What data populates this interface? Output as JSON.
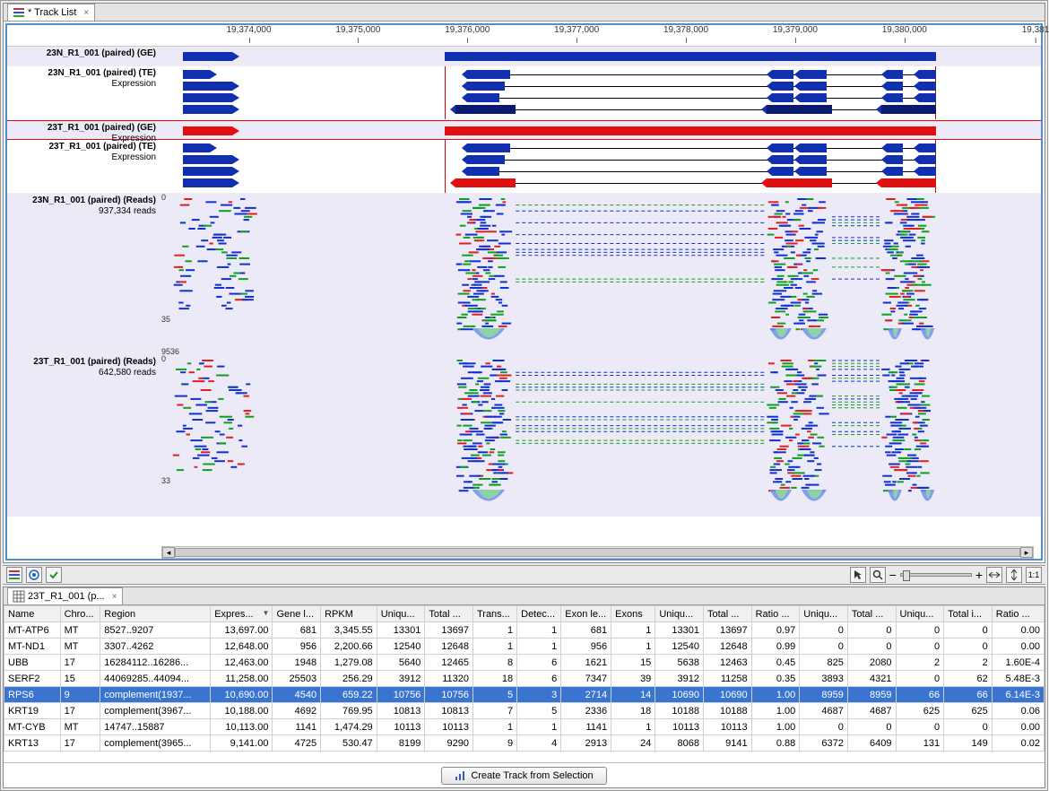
{
  "top_tab": {
    "title": "* Track List"
  },
  "bottom_tab": {
    "title": "23T_R1_001 (p..."
  },
  "ruler": {
    "start": 19373200,
    "end": 19381200,
    "ticks": [
      19374000,
      19375000,
      19376000,
      19377000,
      19378000,
      19379000,
      19380000
    ],
    "right_label": "19,381"
  },
  "selection": {
    "start": 19375800,
    "end": 19380300
  },
  "tracks": [
    {
      "id": "ge_n",
      "type": "ge",
      "label": "23N_R1_001 (paired) (GE)",
      "color": "#1030b0",
      "gene_bar": {
        "start": 19373400,
        "end": 19380300
      }
    },
    {
      "id": "te_n",
      "type": "te",
      "label": "23N_R1_001 (paired) (TE)",
      "sub": "Expression",
      "left_block": {
        "start": 19373400,
        "end": 19373700
      },
      "transcripts": [
        {
          "exons": [
            [
              19376000,
              19376400
            ],
            [
              19378800,
              19379000
            ],
            [
              19379050,
              19379300
            ],
            [
              19379850,
              19380000
            ],
            [
              19380150,
              19380300
            ]
          ]
        },
        {
          "exons": [
            [
              19376000,
              19376350
            ],
            [
              19378800,
              19379000
            ],
            [
              19379050,
              19379300
            ],
            [
              19379850,
              19380000
            ],
            [
              19380150,
              19380300
            ]
          ]
        },
        {
          "exons": [
            [
              19376000,
              19376300
            ],
            [
              19378800,
              19379000
            ],
            [
              19379050,
              19379300
            ],
            [
              19379850,
              19380000
            ],
            [
              19380150,
              19380300
            ]
          ]
        },
        {
          "exons": [
            [
              19375900,
              19376450
            ],
            [
              19378750,
              19379350
            ],
            [
              19379800,
              19380300
            ]
          ],
          "dark": true
        }
      ]
    },
    {
      "id": "ge_t",
      "type": "ge",
      "label": "23T_R1_001 (paired) (GE)",
      "sub": "Expression",
      "color": "#e01010",
      "red_border": true,
      "gene_bar": {
        "start": 19373400,
        "end": 19380300
      }
    },
    {
      "id": "te_t",
      "type": "te",
      "label": "23T_R1_001 (paired) (TE)",
      "sub": "Expression",
      "left_block": {
        "start": 19373400,
        "end": 19373700
      },
      "transcripts": [
        {
          "exons": [
            [
              19376000,
              19376400
            ],
            [
              19378800,
              19379000
            ],
            [
              19379050,
              19379300
            ],
            [
              19379850,
              19380000
            ],
            [
              19380150,
              19380300
            ]
          ]
        },
        {
          "exons": [
            [
              19376000,
              19376350
            ],
            [
              19378800,
              19379000
            ],
            [
              19379050,
              19379300
            ],
            [
              19379850,
              19380000
            ],
            [
              19380150,
              19380300
            ]
          ]
        },
        {
          "exons": [
            [
              19376000,
              19376300
            ],
            [
              19378800,
              19379000
            ],
            [
              19379050,
              19379300
            ],
            [
              19379850,
              19380000
            ],
            [
              19380150,
              19380300
            ]
          ]
        },
        {
          "exons": [
            [
              19375900,
              19376450
            ],
            [
              19378750,
              19379350
            ],
            [
              19379800,
              19380300
            ]
          ],
          "red": true
        }
      ]
    },
    {
      "id": "reads_n",
      "type": "reads",
      "label": "23N_R1_001 (paired) (Reads)",
      "sub": "937,334 reads",
      "scale_top": "0",
      "scale_bot": "35",
      "scale_extra": "9536"
    },
    {
      "id": "reads_t",
      "type": "reads",
      "label": "23T_R1_001 (paired) (Reads)",
      "sub": "642,580 reads",
      "scale_top": "0",
      "scale_bot": "33"
    }
  ],
  "read_colors": {
    "fwd": "#1030d0",
    "rev": "#10a020",
    "mm": "#e02020",
    "pile_a": "#7090f0",
    "pile_b": "#90e090"
  },
  "toolbar": {
    "left_icons": [
      "tracks-icon",
      "target-icon",
      "check-icon"
    ],
    "right_icons": [
      "pointer-icon",
      "zoom-icon"
    ],
    "fit_label": "1:1"
  },
  "table": {
    "columns": [
      {
        "key": "name",
        "label": "Name",
        "w": 56
      },
      {
        "key": "chro",
        "label": "Chro...",
        "w": 40
      },
      {
        "key": "region",
        "label": "Region",
        "w": 110
      },
      {
        "key": "express",
        "label": "Expres...",
        "w": 62,
        "num": true,
        "sort": "desc"
      },
      {
        "key": "genel",
        "label": "Gene l...",
        "w": 48,
        "num": true
      },
      {
        "key": "rpkm",
        "label": "RPKM",
        "w": 56,
        "num": true
      },
      {
        "key": "uniq1",
        "label": "Uniqu...",
        "w": 48,
        "num": true
      },
      {
        "key": "total1",
        "label": "Total ...",
        "w": 48,
        "num": true
      },
      {
        "key": "trans",
        "label": "Trans...",
        "w": 44,
        "num": true
      },
      {
        "key": "detec",
        "label": "Detec...",
        "w": 44,
        "num": true
      },
      {
        "key": "exonle",
        "label": "Exon le...",
        "w": 50,
        "num": true
      },
      {
        "key": "exons",
        "label": "Exons",
        "w": 44,
        "num": true
      },
      {
        "key": "uniq2",
        "label": "Uniqu...",
        "w": 48,
        "num": true
      },
      {
        "key": "total2",
        "label": "Total ...",
        "w": 48,
        "num": true
      },
      {
        "key": "ratio1",
        "label": "Ratio ...",
        "w": 48,
        "num": true
      },
      {
        "key": "uniq3",
        "label": "Uniqu...",
        "w": 48,
        "num": true
      },
      {
        "key": "total3",
        "label": "Total ...",
        "w": 48,
        "num": true
      },
      {
        "key": "uniq4",
        "label": "Uniqu...",
        "w": 48,
        "num": true
      },
      {
        "key": "totali",
        "label": "Total i...",
        "w": 48,
        "num": true
      },
      {
        "key": "ratio2",
        "label": "Ratio ...",
        "w": 52,
        "num": true
      }
    ],
    "rows": [
      {
        "name": "MT-ATP6",
        "chro": "MT",
        "region": "8527..9207",
        "express": "13,697.00",
        "genel": "681",
        "rpkm": "3,345.55",
        "uniq1": "13301",
        "total1": "13697",
        "trans": "1",
        "detec": "1",
        "exonle": "681",
        "exons": "1",
        "uniq2": "13301",
        "total2": "13697",
        "ratio1": "0.97",
        "uniq3": "0",
        "total3": "0",
        "uniq4": "0",
        "totali": "0",
        "ratio2": "0.00"
      },
      {
        "name": "MT-ND1",
        "chro": "MT",
        "region": "3307..4262",
        "express": "12,648.00",
        "genel": "956",
        "rpkm": "2,200.66",
        "uniq1": "12540",
        "total1": "12648",
        "trans": "1",
        "detec": "1",
        "exonle": "956",
        "exons": "1",
        "uniq2": "12540",
        "total2": "12648",
        "ratio1": "0.99",
        "uniq3": "0",
        "total3": "0",
        "uniq4": "0",
        "totali": "0",
        "ratio2": "0.00"
      },
      {
        "name": "UBB",
        "chro": "17",
        "region": "16284112..16286...",
        "express": "12,463.00",
        "genel": "1948",
        "rpkm": "1,279.08",
        "uniq1": "5640",
        "total1": "12465",
        "trans": "8",
        "detec": "6",
        "exonle": "1621",
        "exons": "15",
        "uniq2": "5638",
        "total2": "12463",
        "ratio1": "0.45",
        "uniq3": "825",
        "total3": "2080",
        "uniq4": "2",
        "totali": "2",
        "ratio2": "1.60E-4"
      },
      {
        "name": "SERF2",
        "chro": "15",
        "region": "44069285..44094...",
        "express": "11,258.00",
        "genel": "25503",
        "rpkm": "256.29",
        "uniq1": "3912",
        "total1": "11320",
        "trans": "18",
        "detec": "6",
        "exonle": "7347",
        "exons": "39",
        "uniq2": "3912",
        "total2": "11258",
        "ratio1": "0.35",
        "uniq3": "3893",
        "total3": "4321",
        "uniq4": "0",
        "totali": "62",
        "ratio2": "5.48E-3"
      },
      {
        "name": "RPS6",
        "chro": "9",
        "region": "complement(1937...",
        "express": "10,690.00",
        "genel": "4540",
        "rpkm": "659.22",
        "uniq1": "10756",
        "total1": "10756",
        "trans": "5",
        "detec": "3",
        "exonle": "2714",
        "exons": "14",
        "uniq2": "10690",
        "total2": "10690",
        "ratio1": "1.00",
        "uniq3": "8959",
        "total3": "8959",
        "uniq4": "66",
        "totali": "66",
        "ratio2": "6.14E-3",
        "selected": true
      },
      {
        "name": "KRT19",
        "chro": "17",
        "region": "complement(3967...",
        "express": "10,188.00",
        "genel": "4692",
        "rpkm": "769.95",
        "uniq1": "10813",
        "total1": "10813",
        "trans": "7",
        "detec": "5",
        "exonle": "2336",
        "exons": "18",
        "uniq2": "10188",
        "total2": "10188",
        "ratio1": "1.00",
        "uniq3": "4687",
        "total3": "4687",
        "uniq4": "625",
        "totali": "625",
        "ratio2": "0.06"
      },
      {
        "name": "MT-CYB",
        "chro": "MT",
        "region": "14747..15887",
        "express": "10,113.00",
        "genel": "1141",
        "rpkm": "1,474.29",
        "uniq1": "10113",
        "total1": "10113",
        "trans": "1",
        "detec": "1",
        "exonle": "1141",
        "exons": "1",
        "uniq2": "10113",
        "total2": "10113",
        "ratio1": "1.00",
        "uniq3": "0",
        "total3": "0",
        "uniq4": "0",
        "totali": "0",
        "ratio2": "0.00"
      },
      {
        "name": "KRT13",
        "chro": "17",
        "region": "complement(3965...",
        "express": "9,141.00",
        "genel": "4725",
        "rpkm": "530.47",
        "uniq1": "8199",
        "total1": "9290",
        "trans": "9",
        "detec": "4",
        "exonle": "2913",
        "exons": "24",
        "uniq2": "8068",
        "total2": "9141",
        "ratio1": "0.88",
        "uniq3": "6372",
        "total3": "6409",
        "uniq4": "131",
        "totali": "149",
        "ratio2": "0.02"
      }
    ]
  },
  "button": {
    "label": "Create Track from Selection"
  }
}
